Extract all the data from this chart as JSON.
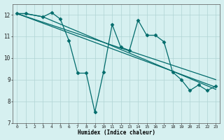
{
  "xlabel": "Humidex (Indice chaleur)",
  "background_color": "#d6f0f0",
  "grid_color": "#b0d4d4",
  "line_color": "#006b6b",
  "xlim": [
    -0.5,
    23.5
  ],
  "ylim": [
    7,
    12.5
  ],
  "yticks": [
    7,
    8,
    9,
    10,
    11,
    12
  ],
  "xticks": [
    0,
    1,
    2,
    3,
    4,
    5,
    6,
    7,
    8,
    9,
    10,
    11,
    12,
    13,
    14,
    15,
    16,
    17,
    18,
    19,
    20,
    21,
    22,
    23
  ],
  "series1_x": [
    0,
    1,
    3,
    4,
    5,
    6,
    7,
    8,
    9,
    10,
    11,
    12,
    13,
    14,
    15,
    16,
    17,
    18,
    19,
    20,
    21,
    22,
    23
  ],
  "series1_y": [
    12.05,
    12.05,
    11.9,
    12.1,
    11.8,
    10.8,
    9.3,
    9.3,
    7.5,
    9.35,
    11.55,
    10.5,
    10.35,
    11.75,
    11.05,
    11.05,
    10.75,
    9.35,
    9.0,
    8.5,
    8.75,
    8.5,
    8.7
  ],
  "series2_x": [
    0,
    1,
    3,
    23
  ],
  "series2_y": [
    12.05,
    12.05,
    11.9,
    8.55
  ],
  "series3_x": [
    0,
    23
  ],
  "series3_y": [
    12.05,
    8.65
  ],
  "series4_x": [
    0,
    23
  ],
  "series4_y": [
    12.05,
    9.0
  ],
  "markersize": 2.5,
  "linewidth": 0.9
}
